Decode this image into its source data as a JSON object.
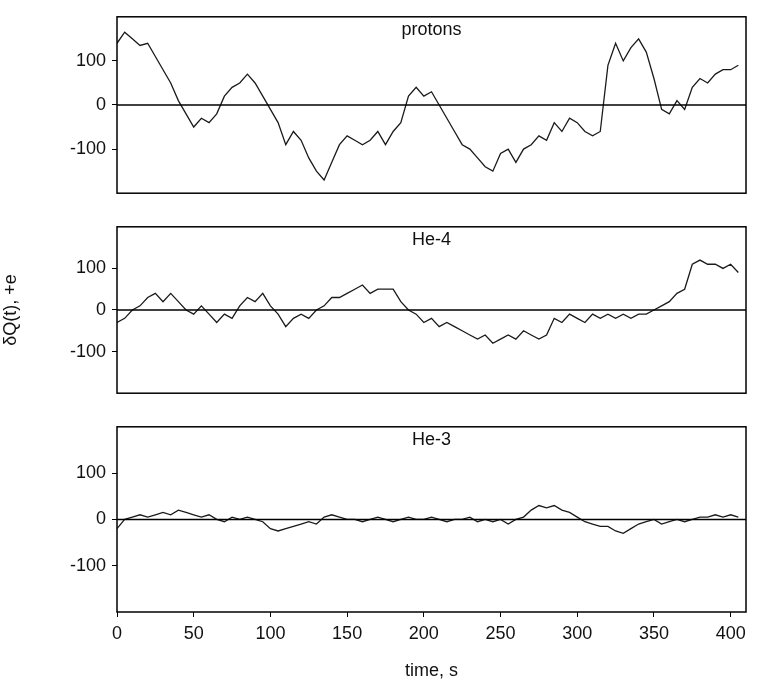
{
  "chart_data": [
    {
      "type": "line",
      "title": "protons",
      "color": "#1a1a1a",
      "x": [
        0,
        5,
        10,
        15,
        20,
        25,
        30,
        35,
        40,
        45,
        50,
        55,
        60,
        65,
        70,
        75,
        80,
        85,
        90,
        95,
        100,
        105,
        110,
        115,
        120,
        125,
        130,
        135,
        140,
        145,
        150,
        155,
        160,
        165,
        170,
        175,
        180,
        185,
        190,
        195,
        200,
        205,
        210,
        215,
        220,
        225,
        230,
        235,
        240,
        245,
        250,
        255,
        260,
        265,
        270,
        275,
        280,
        285,
        290,
        295,
        300,
        305,
        310,
        315,
        320,
        325,
        330,
        335,
        340,
        345,
        350,
        355,
        360,
        365,
        370,
        375,
        380,
        385,
        390,
        395,
        400,
        405
      ],
      "values": [
        140,
        165,
        150,
        135,
        140,
        110,
        80,
        50,
        10,
        -20,
        -50,
        -30,
        -40,
        -20,
        20,
        40,
        50,
        70,
        50,
        20,
        -10,
        -40,
        -90,
        -60,
        -80,
        -120,
        -150,
        -170,
        -130,
        -90,
        -70,
        -80,
        -90,
        -80,
        -60,
        -90,
        -60,
        -40,
        20,
        40,
        20,
        30,
        0,
        -30,
        -60,
        -90,
        -100,
        -120,
        -140,
        -150,
        -110,
        -100,
        -130,
        -100,
        -90,
        -70,
        -80,
        -40,
        -60,
        -30,
        -40,
        -60,
        -70,
        -60,
        90,
        140,
        100,
        130,
        150,
        120,
        60,
        -10,
        -20,
        10,
        -10,
        40,
        60,
        50,
        70,
        80,
        80,
        90
      ],
      "xlim": [
        0,
        410
      ],
      "ylim": [
        -200,
        200
      ],
      "yticks": [
        -100,
        0,
        100
      ],
      "tick_labels": "y"
    },
    {
      "type": "line",
      "title": "He-4",
      "color": "#1a1a1a",
      "ylabel": "δQ(t), +e",
      "x": [
        0,
        5,
        10,
        15,
        20,
        25,
        30,
        35,
        40,
        45,
        50,
        55,
        60,
        65,
        70,
        75,
        80,
        85,
        90,
        95,
        100,
        105,
        110,
        115,
        120,
        125,
        130,
        135,
        140,
        145,
        150,
        155,
        160,
        165,
        170,
        175,
        180,
        185,
        190,
        195,
        200,
        205,
        210,
        215,
        220,
        225,
        230,
        235,
        240,
        245,
        250,
        255,
        260,
        265,
        270,
        275,
        280,
        285,
        290,
        295,
        300,
        305,
        310,
        315,
        320,
        325,
        330,
        335,
        340,
        345,
        350,
        355,
        360,
        365,
        370,
        375,
        380,
        385,
        390,
        395,
        400,
        405
      ],
      "values": [
        -30,
        -20,
        0,
        10,
        30,
        40,
        20,
        40,
        20,
        0,
        -10,
        10,
        -10,
        -30,
        -10,
        -20,
        10,
        30,
        20,
        40,
        10,
        -10,
        -40,
        -20,
        -10,
        -20,
        0,
        10,
        30,
        30,
        40,
        50,
        60,
        40,
        50,
        50,
        50,
        20,
        0,
        -10,
        -30,
        -20,
        -40,
        -30,
        -40,
        -50,
        -60,
        -70,
        -60,
        -80,
        -70,
        -60,
        -70,
        -50,
        -60,
        -70,
        -60,
        -20,
        -30,
        -10,
        -20,
        -30,
        -10,
        -20,
        -10,
        -20,
        -10,
        -20,
        -10,
        -10,
        0,
        10,
        20,
        40,
        50,
        110,
        120,
        110,
        110,
        100,
        110,
        90
      ],
      "xlim": [
        0,
        410
      ],
      "ylim": [
        -200,
        200
      ],
      "yticks": [
        -100,
        0,
        100
      ],
      "tick_labels": "y"
    },
    {
      "type": "line",
      "title": "He-3",
      "color": "#1a1a1a",
      "xlabel": "time, s",
      "x": [
        0,
        5,
        10,
        15,
        20,
        25,
        30,
        35,
        40,
        45,
        50,
        55,
        60,
        65,
        70,
        75,
        80,
        85,
        90,
        95,
        100,
        105,
        110,
        115,
        120,
        125,
        130,
        135,
        140,
        145,
        150,
        155,
        160,
        165,
        170,
        175,
        180,
        185,
        190,
        195,
        200,
        205,
        210,
        215,
        220,
        225,
        230,
        235,
        240,
        245,
        250,
        255,
        260,
        265,
        270,
        275,
        280,
        285,
        290,
        295,
        300,
        305,
        310,
        315,
        320,
        325,
        330,
        335,
        340,
        345,
        350,
        355,
        360,
        365,
        370,
        375,
        380,
        385,
        390,
        395,
        400,
        405
      ],
      "values": [
        -20,
        0,
        5,
        10,
        5,
        10,
        15,
        10,
        20,
        15,
        10,
        5,
        10,
        0,
        -5,
        5,
        0,
        5,
        0,
        -5,
        -20,
        -25,
        -20,
        -15,
        -10,
        -5,
        -10,
        5,
        10,
        5,
        0,
        0,
        -5,
        0,
        5,
        0,
        -5,
        0,
        5,
        0,
        0,
        5,
        0,
        -5,
        0,
        0,
        5,
        -5,
        0,
        -5,
        0,
        -10,
        0,
        5,
        20,
        30,
        25,
        30,
        20,
        15,
        5,
        -5,
        -10,
        -15,
        -15,
        -25,
        -30,
        -20,
        -10,
        -5,
        0,
        -10,
        -5,
        0,
        -5,
        0,
        5,
        5,
        10,
        5,
        10,
        5
      ],
      "xlim": [
        0,
        410
      ],
      "ylim": [
        -200,
        200
      ],
      "yticks": [
        -100,
        0,
        100
      ],
      "xticks": [
        0,
        50,
        100,
        150,
        200,
        250,
        300,
        350,
        400
      ]
    }
  ]
}
